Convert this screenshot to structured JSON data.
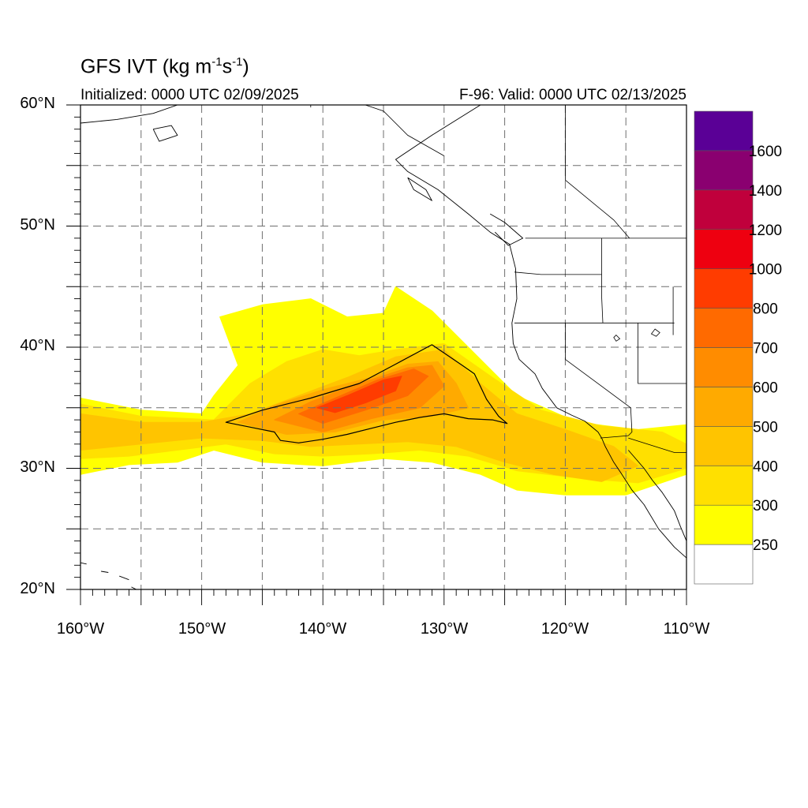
{
  "title": "GFS IVT (kg m⁻¹s⁻¹)",
  "initialized": "Initialized: 0000 UTC 02/09/2025",
  "valid": "F-96: Valid: 0000 UTC 02/13/2025",
  "lat_labels": [
    "60°N",
    "50°N",
    "40°N",
    "30°N",
    "20°N"
  ],
  "lon_labels": [
    "160°W",
    "150°W",
    "140°W",
    "130°W",
    "120°W",
    "110°W"
  ],
  "colorbar": {
    "labels": [
      "250",
      "300",
      "400",
      "500",
      "600",
      "700",
      "800",
      "1000",
      "1200",
      "1400",
      "1600"
    ],
    "colors": [
      "#ffffff",
      "#ffff00",
      "#ffe000",
      "#ffc400",
      "#ffaa00",
      "#ff8c00",
      "#ff6a00",
      "#ff3c00",
      "#ee0010",
      "#c0003c",
      "#8a0070",
      "#5a0096"
    ]
  },
  "map_extent": {
    "lon": [
      -160,
      -110
    ],
    "lat": [
      20,
      60
    ]
  },
  "ivt_fields": [
    {
      "level": "250",
      "color": "#ffff00",
      "polygon": [
        [
          -160,
          35.8
        ],
        [
          -155,
          34.8
        ],
        [
          -150,
          34.5
        ],
        [
          -149,
          36
        ],
        [
          -147,
          38.5
        ],
        [
          -148.5,
          42.5
        ],
        [
          -145,
          43.5
        ],
        [
          -141,
          44
        ],
        [
          -138,
          42.5
        ],
        [
          -135,
          42.8
        ],
        [
          -134,
          45
        ],
        [
          -131,
          43
        ],
        [
          -127,
          39
        ],
        [
          -124,
          36
        ],
        [
          -119,
          33.8
        ],
        [
          -114,
          33.2
        ],
        [
          -110,
          33.6
        ],
        [
          -110,
          29.5
        ],
        [
          -115,
          27.8
        ],
        [
          -120,
          27.8
        ],
        [
          -124,
          28.2
        ],
        [
          -127,
          29.5
        ],
        [
          -131,
          30.5
        ],
        [
          -135,
          30.8
        ],
        [
          -140,
          30.2
        ],
        [
          -145,
          30.5
        ],
        [
          -149,
          31.5
        ],
        [
          -152,
          30.5
        ],
        [
          -156,
          30.3
        ],
        [
          -160,
          29.5
        ]
      ]
    },
    {
      "level": "300",
      "color": "#ffe000",
      "polygon": [
        [
          -160,
          35.3
        ],
        [
          -155,
          34.3
        ],
        [
          -149,
          34
        ],
        [
          -146,
          37
        ],
        [
          -143,
          38.8
        ],
        [
          -140,
          39.8
        ],
        [
          -137,
          39.3
        ],
        [
          -134,
          39.8
        ],
        [
          -130,
          40.3
        ],
        [
          -126,
          37.5
        ],
        [
          -122,
          34.8
        ],
        [
          -117,
          33.5
        ],
        [
          -112,
          33
        ],
        [
          -110,
          32
        ],
        [
          -110,
          30
        ],
        [
          -114,
          28.8
        ],
        [
          -119,
          29.2
        ],
        [
          -124,
          29.8
        ],
        [
          -128,
          31
        ],
        [
          -132,
          31.5
        ],
        [
          -136,
          31.2
        ],
        [
          -140,
          31
        ],
        [
          -144,
          31.2
        ],
        [
          -148,
          32
        ],
        [
          -152,
          31.5
        ],
        [
          -156,
          31
        ],
        [
          -160,
          30.8
        ]
      ]
    },
    {
      "level": "400",
      "color": "#ffc400",
      "polygon": [
        [
          -160,
          34.5
        ],
        [
          -155,
          33.8
        ],
        [
          -150,
          33.8
        ],
        [
          -146,
          34.5
        ],
        [
          -142,
          36
        ],
        [
          -138,
          37.5
        ],
        [
          -134,
          39.2
        ],
        [
          -130,
          39.8
        ],
        [
          -127,
          37
        ],
        [
          -124,
          34.5
        ],
        [
          -120,
          33.2
        ],
        [
          -116,
          31.8
        ],
        [
          -114,
          30.2
        ],
        [
          -117,
          28.9
        ],
        [
          -121,
          29.5
        ],
        [
          -125,
          30.5
        ],
        [
          -129,
          31.8
        ],
        [
          -133,
          32.2
        ],
        [
          -137,
          32
        ],
        [
          -141,
          31.8
        ],
        [
          -145,
          32.3
        ],
        [
          -150,
          32.5
        ],
        [
          -155,
          32
        ],
        [
          -160,
          31.5
        ]
      ]
    },
    {
      "level": "500",
      "color": "#ffaa00",
      "polygon": [
        [
          -147,
          33.8
        ],
        [
          -144,
          35.2
        ],
        [
          -140,
          36.5
        ],
        [
          -136,
          37.5
        ],
        [
          -133,
          38.6
        ],
        [
          -130.5,
          38.8
        ],
        [
          -129,
          37
        ],
        [
          -128,
          35
        ],
        [
          -131,
          34.3
        ],
        [
          -135,
          34
        ],
        [
          -139,
          33
        ],
        [
          -143,
          32.8
        ]
      ]
    },
    {
      "level": "600",
      "color": "#ff8c00",
      "polygon": [
        [
          -144,
          34
        ],
        [
          -141,
          35.5
        ],
        [
          -137,
          37
        ],
        [
          -133,
          38.3
        ],
        [
          -131,
          38.5
        ],
        [
          -130,
          36.8
        ],
        [
          -132,
          35
        ],
        [
          -136,
          34.1
        ],
        [
          -140,
          33
        ]
      ]
    },
    {
      "level": "700",
      "color": "#ff6a00",
      "polygon": [
        [
          -142,
          34.5
        ],
        [
          -139,
          35.8
        ],
        [
          -135.5,
          37.3
        ],
        [
          -132.5,
          38.2
        ],
        [
          -131.3,
          37.6
        ],
        [
          -133,
          36
        ],
        [
          -136.5,
          34.8
        ],
        [
          -140,
          33.7
        ]
      ]
    },
    {
      "level": "800",
      "color": "#ff3c00",
      "polygon": [
        [
          -140.5,
          35
        ],
        [
          -138,
          36
        ],
        [
          -135,
          37.3
        ],
        [
          -133.5,
          37.6
        ],
        [
          -134,
          36.4
        ],
        [
          -136.5,
          35.4
        ],
        [
          -139,
          34.6
        ]
      ]
    }
  ],
  "ivt_contour": [
    [
      -148,
      33.8
    ],
    [
      -145,
      34.8
    ],
    [
      -141,
      35.8
    ],
    [
      -137,
      37
    ],
    [
      -134,
      38.6
    ],
    [
      -131,
      40.2
    ],
    [
      -128.5,
      38.5
    ],
    [
      -127.5,
      37.8
    ],
    [
      -126.5,
      35.7
    ],
    [
      -125.5,
      34.3
    ],
    [
      -124.8,
      33.7
    ],
    [
      -126,
      34
    ],
    [
      -128,
      34.1
    ],
    [
      -130,
      34.5
    ],
    [
      -132,
      34.2
    ],
    [
      -134,
      33.8
    ],
    [
      -136,
      33.3
    ],
    [
      -138,
      32.8
    ],
    [
      -140,
      32.4
    ],
    [
      -142,
      32.1
    ],
    [
      -143.5,
      32.3
    ],
    [
      -144,
      33
    ],
    [
      -146,
      33.4
    ]
  ],
  "coastlines": [
    [
      [
        -127,
        60
      ],
      [
        -131,
        57.5
      ],
      [
        -134,
        55.5
      ],
      [
        -133,
        54.5
      ],
      [
        -130.5,
        53
      ],
      [
        -128,
        51
      ],
      [
        -126.2,
        49.5
      ],
      [
        -124.6,
        48.5
      ],
      [
        -124.1,
        46.5
      ],
      [
        -124,
        44
      ],
      [
        -124.4,
        42
      ],
      [
        -124.3,
        40.3
      ],
      [
        -123.8,
        39
      ],
      [
        -122.5,
        37.8
      ],
      [
        -121.9,
        36.6
      ],
      [
        -120.7,
        35
      ],
      [
        -119.5,
        34.4
      ],
      [
        -118.4,
        33.9
      ],
      [
        -117.3,
        33
      ],
      [
        -117,
        32.5
      ],
      [
        -116.7,
        31.8
      ],
      [
        -116,
        30.5
      ],
      [
        -115.4,
        29.6
      ],
      [
        -114.5,
        28.2
      ],
      [
        -113.5,
        27
      ],
      [
        -112.3,
        25
      ],
      [
        -111,
        23.5
      ],
      [
        -110,
        22.6
      ]
    ],
    [
      [
        -114.8,
        31.5
      ],
      [
        -113.5,
        30
      ],
      [
        -112.8,
        29
      ],
      [
        -112,
        28
      ],
      [
        -111,
        26.5
      ],
      [
        -110.5,
        25.2
      ],
      [
        -110,
        24
      ]
    ],
    [
      [
        -126.2,
        51
      ],
      [
        -125,
        50.3
      ],
      [
        -123.5,
        49
      ],
      [
        -124.7,
        48.4
      ],
      [
        -125.8,
        49.5
      ]
    ],
    [
      [
        -133,
        54
      ],
      [
        -131.5,
        53
      ],
      [
        -131,
        52.1
      ],
      [
        -132.5,
        53
      ],
      [
        -133,
        54
      ]
    ],
    [
      [
        -160,
        58.5
      ],
      [
        -157,
        58.8
      ],
      [
        -154,
        59.3
      ],
      [
        -152,
        60
      ]
    ],
    [
      [
        -154,
        58
      ],
      [
        -152.5,
        58.3
      ],
      [
        -152,
        57.5
      ],
      [
        -153.5,
        57
      ],
      [
        -154,
        58
      ]
    ],
    [
      [
        -160,
        22.2
      ],
      [
        -159.5,
        22.1
      ]
    ],
    [
      [
        -158.3,
        21.5
      ],
      [
        -157.7,
        21.4
      ]
    ],
    [
      [
        -156.8,
        21.1
      ],
      [
        -156,
        20.8
      ]
    ],
    [
      [
        -155.8,
        20.2
      ],
      [
        -155,
        19.8
      ],
      [
        -154.8,
        20
      ]
    ]
  ],
  "borders": [
    [
      [
        -123.3,
        49
      ],
      [
        -110,
        49
      ]
    ],
    [
      [
        -130,
        55.8
      ],
      [
        -133,
        57.5
      ],
      [
        -135,
        59.5
      ],
      [
        -136.5,
        60
      ]
    ],
    [
      [
        -141,
        60
      ],
      [
        -141,
        59.8
      ]
    ],
    [
      [
        -120,
        60
      ],
      [
        -120,
        53.8
      ],
      [
        -116,
        50.5
      ],
      [
        -114.7,
        49
      ]
    ],
    [
      [
        -124.2,
        46.2
      ],
      [
        -122,
        46
      ],
      [
        -119,
        46
      ],
      [
        -117,
        46
      ]
    ],
    [
      [
        -117,
        49
      ],
      [
        -117,
        44.2
      ],
      [
        -116.9,
        42
      ]
    ],
    [
      [
        -124.2,
        42
      ],
      [
        -111,
        42
      ]
    ],
    [
      [
        -120,
        42
      ],
      [
        -120,
        39
      ],
      [
        -114.6,
        35
      ]
    ],
    [
      [
        -114.6,
        35
      ],
      [
        -114.5,
        33
      ],
      [
        -114.8,
        32.7
      ]
    ],
    [
      [
        -114,
        42
      ],
      [
        -114,
        37
      ],
      [
        -110,
        37
      ]
    ],
    [
      [
        -114.8,
        32.5
      ],
      [
        -111,
        31.3
      ],
      [
        -110,
        31.3
      ]
    ],
    [
      [
        -117.1,
        32.5
      ],
      [
        -114.8,
        32.7
      ]
    ],
    [
      [
        -111.1,
        45
      ],
      [
        -111.1,
        41
      ]
    ]
  ],
  "lakes": [
    [
      [
        -112.6,
        41.5
      ],
      [
        -112.2,
        41.2
      ],
      [
        -112.5,
        40.9
      ],
      [
        -112.9,
        41.1
      ]
    ],
    [
      [
        -115.8,
        41
      ],
      [
        -115.5,
        40.7
      ],
      [
        -115.8,
        40.5
      ],
      [
        -116,
        40.8
      ]
    ]
  ]
}
